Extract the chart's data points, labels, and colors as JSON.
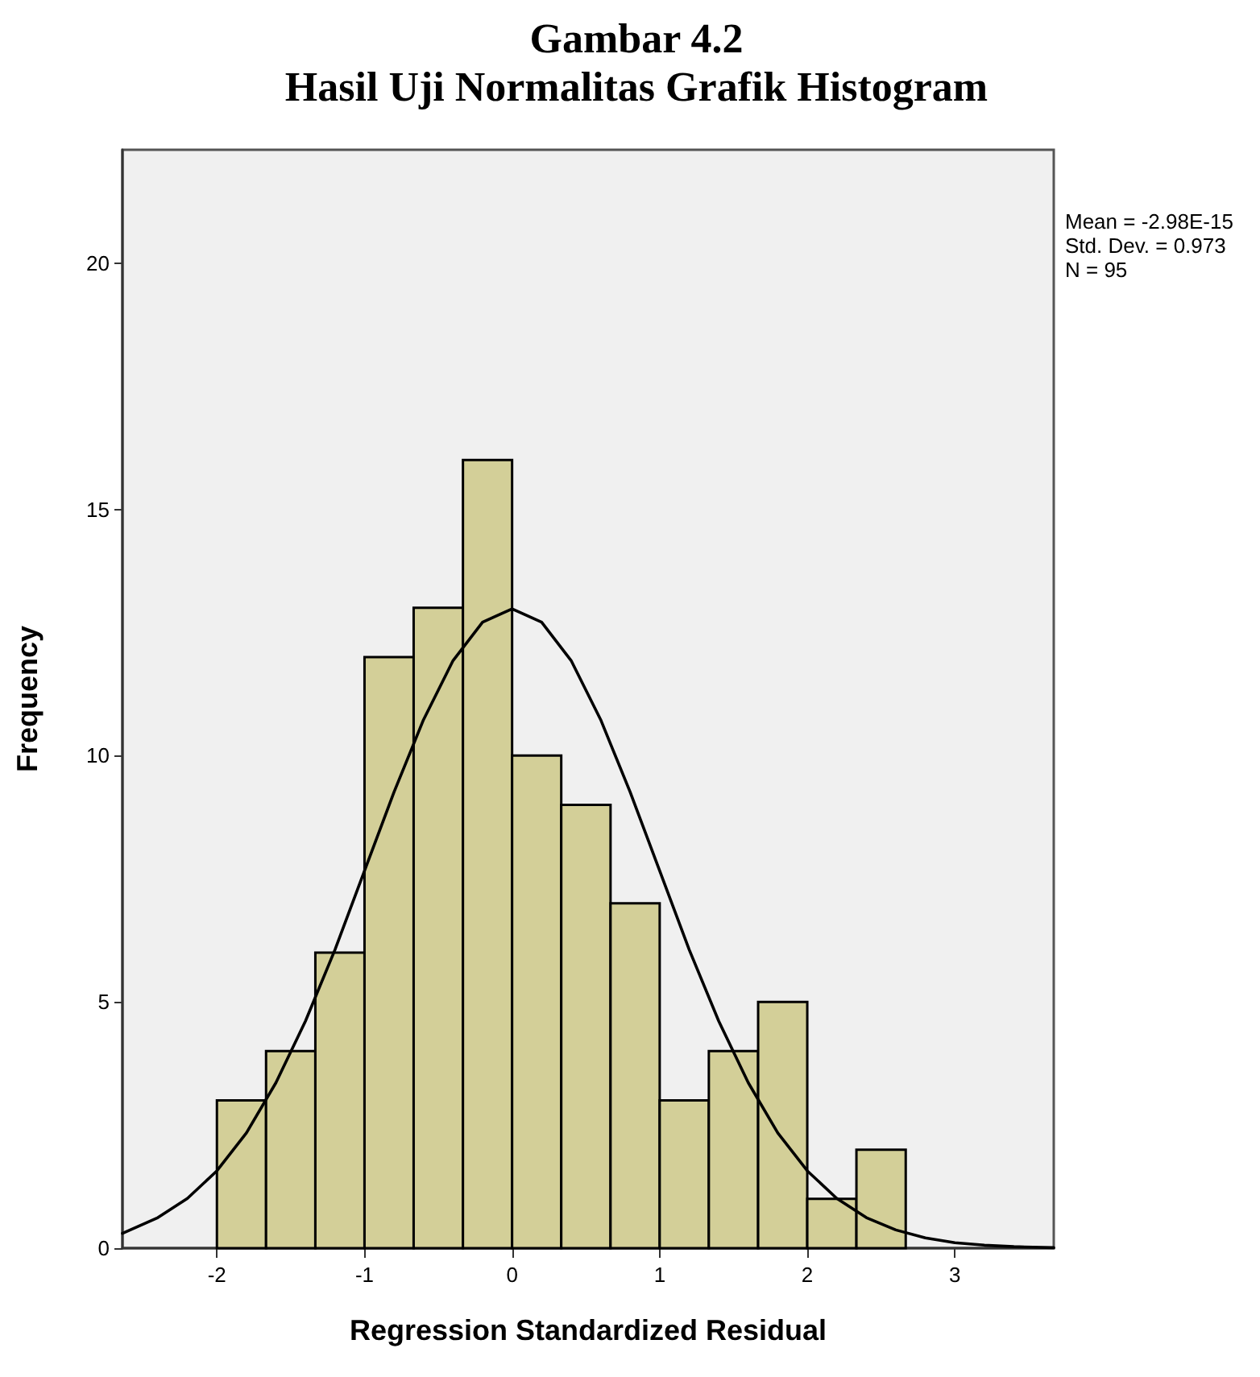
{
  "chart_data": {
    "type": "histogram",
    "title": "Gambar 4.2\nHasil Uji Normalitas Grafik Histogram",
    "xlabel": "Regression Standardized Residual",
    "ylabel": "Frequency",
    "annotations": [
      "Mean = -2.98E-15\nStd. Dev. = 0.973\nN = 95"
    ],
    "bins": [
      -2,
      -1.667,
      -1.333,
      -1,
      -0.667,
      -0.333,
      0,
      0.333,
      0.667,
      1,
      1.333,
      1.667,
      2,
      2.333,
      2.667
    ],
    "values": [
      3,
      4,
      6,
      12,
      13,
      16,
      10,
      9,
      7,
      3,
      4,
      5,
      1,
      2
    ],
    "color": "#d3cf98",
    "series": [
      {
        "type": "line",
        "color": "#000000",
        "x": [
          -2.64,
          -2.4,
          -2.2,
          -2.0,
          -1.8,
          -1.6,
          -1.4,
          -1.2,
          -1.0,
          -0.8,
          -0.6,
          -0.4,
          -0.2,
          0,
          0.2,
          0.4,
          0.6,
          0.8,
          1.0,
          1.2,
          1.4,
          1.6,
          1.8,
          2.0,
          2.2,
          2.4,
          2.6,
          2.8,
          3.0,
          3.2,
          3.4,
          3.67
        ],
        "values": [
          0.3,
          0.62,
          1.01,
          1.57,
          2.34,
          3.36,
          4.61,
          6.06,
          7.66,
          9.26,
          10.73,
          11.93,
          12.71,
          12.98,
          12.71,
          11.93,
          10.73,
          9.26,
          7.66,
          6.06,
          4.61,
          3.36,
          2.34,
          1.57,
          1.01,
          0.62,
          0.37,
          0.21,
          0.11,
          0.06,
          0.03,
          0.01
        ]
      }
    ],
    "xlim": [
      -2.64,
      3.67
    ],
    "xticks": [
      -2,
      -1,
      0,
      1,
      2,
      3
    ],
    "ylim": [
      0,
      22.3
    ],
    "yticks": [
      0,
      5,
      10,
      15,
      20
    ],
    "grid": false,
    "marker": "none",
    "line_style": "solid"
  }
}
